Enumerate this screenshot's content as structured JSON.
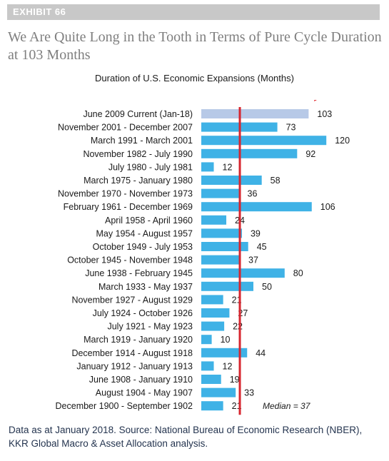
{
  "exhibit": "EXHIBIT 66",
  "title": "We Are Quite Long in the Tooth in Terms of Pure Cycle Duration at 103 Months",
  "footer": "Data as at January 2018. Source: National Bureau of Economic Research (NBER), KKR Global Macro & Asset Allocation analysis.",
  "colors": {
    "bar": "#3fb2e6",
    "highlight": "#b7c9e7",
    "median": "#d7262f",
    "arrow": "#e01f26",
    "exhibit_bg": "#c8c8c8"
  },
  "chart_data": {
    "type": "bar",
    "orientation": "horizontal",
    "title": "Duration of U.S. Economic Expansions (Months)",
    "categories": [
      "June 2009 Current (Jan-18)",
      "November 2001 - December 2007",
      "March 1991 - March 2001",
      "November 1982 - July 1990",
      "July 1980 - July 1981",
      "March 1975 - January 1980",
      "November 1970 - November 1973",
      "February 1961 - December 1969",
      "April 1958 - April 1960",
      "May 1954 - August 1957",
      "October 1949 - July 1953",
      "October 1945 - November 1948",
      "June 1938 - February 1945",
      "March 1933 - May 1937",
      "November 1927 - August 1929",
      "July 1924 - October 1926",
      "July 1921 - May 1923",
      "March 1919 - January 1920",
      "December 1914 - August 1918",
      "January 1912 - January 1913",
      "June 1908 - January 1910",
      "August 1904 - May 1907",
      "December 1900 - September 1902"
    ],
    "values": [
      103,
      73,
      120,
      92,
      12,
      58,
      36,
      106,
      24,
      39,
      45,
      37,
      80,
      50,
      21,
      27,
      22,
      10,
      44,
      12,
      19,
      33,
      21
    ],
    "highlight_index": 0,
    "median": 37,
    "median_label": "Median = 37",
    "xlim": [
      0,
      120
    ],
    "grid": false,
    "legend": "none"
  }
}
